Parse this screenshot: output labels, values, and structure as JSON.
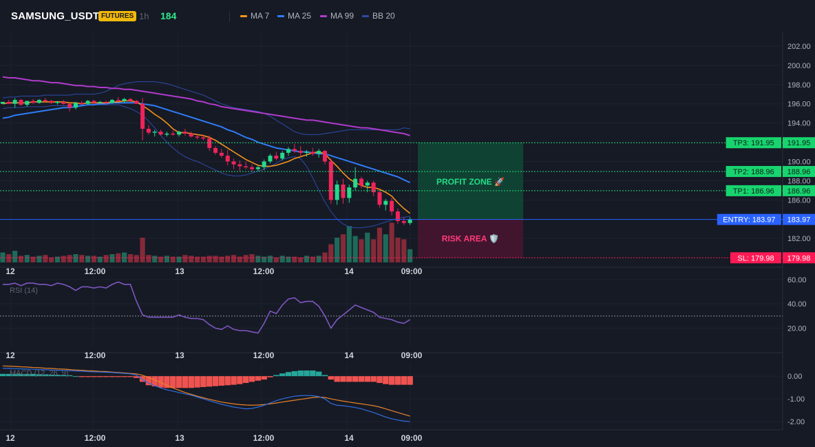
{
  "header": {
    "symbol": "SAMSUNG_USDT",
    "badge": "FUTURES",
    "timeframe": "1h",
    "last_value": "184",
    "legend": [
      {
        "label": "MA 7",
        "color": "#f7931a"
      },
      {
        "label": "MA 25",
        "color": "#2f7df6"
      },
      {
        "label": "MA 99",
        "color": "#b03bcc"
      },
      {
        "label": "BB 20",
        "color": "#2e4ba8"
      }
    ]
  },
  "colors": {
    "up": "#26d98b",
    "down": "#f0245a",
    "ma7": "#f7931a",
    "ma25": "#2f7df6",
    "ma99": "#b03bcc",
    "bb": "#2e4ba8",
    "entry": "#2962ff",
    "tp": "#22dd77",
    "sl": "#ff1f5a",
    "rsi": "#7e57c2",
    "macd": "#2f6fe0",
    "signal": "#e8832a",
    "hist_up": "#26a69a",
    "hist_down": "#ef5350"
  },
  "chart_data": [
    {
      "type": "candlestick",
      "pane": "price",
      "title": "",
      "x_labels": [
        "12",
        "12:00",
        "13",
        "12:00",
        "14",
        "09:00"
      ],
      "yticks": [
        "202.00",
        "200.00",
        "198.00",
        "196.00",
        "194.00",
        "190.00",
        "188.00",
        "186.00",
        "182.00"
      ],
      "ylim": [
        179.5,
        203.5
      ],
      "candles": [
        [
          196.0,
          196.2,
          196.0,
          196.2
        ],
        [
          196.2,
          196.4,
          196.0,
          196.0
        ],
        [
          196.0,
          196.6,
          195.6,
          196.4
        ],
        [
          196.4,
          196.5,
          195.8,
          195.9
        ],
        [
          195.9,
          196.3,
          195.7,
          196.3
        ],
        [
          196.3,
          196.5,
          196.0,
          196.1
        ],
        [
          196.1,
          196.5,
          196.0,
          196.4
        ],
        [
          196.4,
          196.6,
          196.2,
          196.3
        ],
        [
          196.3,
          196.4,
          196.0,
          196.1
        ],
        [
          196.1,
          196.3,
          195.9,
          196.2
        ],
        [
          196.2,
          196.4,
          195.9,
          196.0
        ],
        [
          196.0,
          196.1,
          195.2,
          195.6
        ],
        [
          195.6,
          196.2,
          195.4,
          196.1
        ],
        [
          196.1,
          196.3,
          195.9,
          196.0
        ],
        [
          196.0,
          196.4,
          195.9,
          196.3
        ],
        [
          196.3,
          196.4,
          196.0,
          196.1
        ],
        [
          196.1,
          196.3,
          196.0,
          196.2
        ],
        [
          196.2,
          196.3,
          196.0,
          196.1
        ],
        [
          196.1,
          196.5,
          196.0,
          196.4
        ],
        [
          196.4,
          196.7,
          196.2,
          196.3
        ],
        [
          196.3,
          196.6,
          196.1,
          196.5
        ],
        [
          196.5,
          196.6,
          196.2,
          196.3
        ],
        [
          196.3,
          196.4,
          196.0,
          196.0
        ],
        [
          196.0,
          196.6,
          192.2,
          193.4
        ],
        [
          193.4,
          193.8,
          192.8,
          193.0
        ],
        [
          193.0,
          193.3,
          192.6,
          193.1
        ],
        [
          193.1,
          193.3,
          192.7,
          192.8
        ],
        [
          192.8,
          193.1,
          192.6,
          192.9
        ],
        [
          192.9,
          193.2,
          192.7,
          192.8
        ],
        [
          192.8,
          193.2,
          192.6,
          193.1
        ],
        [
          193.1,
          193.4,
          192.7,
          192.9
        ],
        [
          192.9,
          193.1,
          192.5,
          192.6
        ],
        [
          192.6,
          192.8,
          192.3,
          192.5
        ],
        [
          192.5,
          192.8,
          192.2,
          192.4
        ],
        [
          192.4,
          192.7,
          191.1,
          191.4
        ],
        [
          191.4,
          191.6,
          190.7,
          190.9
        ],
        [
          190.9,
          191.3,
          190.4,
          190.6
        ],
        [
          190.6,
          191.2,
          189.6,
          190.0
        ],
        [
          190.0,
          190.3,
          189.2,
          189.7
        ],
        [
          189.7,
          190.1,
          189.0,
          189.5
        ],
        [
          189.5,
          190.0,
          189.2,
          189.4
        ],
        [
          189.4,
          189.7,
          188.9,
          189.2
        ],
        [
          189.2,
          189.6,
          189.0,
          189.4
        ],
        [
          189.4,
          190.2,
          189.1,
          190.0
        ],
        [
          190.0,
          190.8,
          189.8,
          190.6
        ],
        [
          190.6,
          191.0,
          190.1,
          190.3
        ],
        [
          190.3,
          191.1,
          190.1,
          190.9
        ],
        [
          190.9,
          191.5,
          190.6,
          191.3
        ],
        [
          191.3,
          191.8,
          190.9,
          191.1
        ],
        [
          191.1,
          191.6,
          190.6,
          190.9
        ],
        [
          190.9,
          191.2,
          190.5,
          191.0
        ],
        [
          191.0,
          191.4,
          190.6,
          190.8
        ],
        [
          190.8,
          191.3,
          190.4,
          191.1
        ],
        [
          191.1,
          191.2,
          189.7,
          190.0
        ],
        [
          190.0,
          190.3,
          185.6,
          186.0
        ],
        [
          186.0,
          188.0,
          185.5,
          187.6
        ],
        [
          187.6,
          188.2,
          185.6,
          186.2
        ],
        [
          186.2,
          187.6,
          185.7,
          187.3
        ],
        [
          187.3,
          189.4,
          187.0,
          188.2
        ],
        [
          188.2,
          188.4,
          187.2,
          187.5
        ],
        [
          187.5,
          188.0,
          186.8,
          187.8
        ],
        [
          187.8,
          188.0,
          186.4,
          186.8
        ],
        [
          186.8,
          187.1,
          185.2,
          185.5
        ],
        [
          185.5,
          186.1,
          184.9,
          185.9
        ],
        [
          185.9,
          186.2,
          184.4,
          184.8
        ],
        [
          184.8,
          185.1,
          183.5,
          183.8
        ],
        [
          183.8,
          184.2,
          183.4,
          183.6
        ],
        [
          183.6,
          184.2,
          183.4,
          184.0
        ]
      ],
      "ma7": [
        196.0,
        196.1,
        196.1,
        196.1,
        196.1,
        196.2,
        196.2,
        196.2,
        196.2,
        196.2,
        196.2,
        196.1,
        196.1,
        196.0,
        196.1,
        196.1,
        196.1,
        196.1,
        196.2,
        196.2,
        196.3,
        196.3,
        196.2,
        195.8,
        195.4,
        194.9,
        194.5,
        194.0,
        193.4,
        193.0,
        193.0,
        192.9,
        192.8,
        192.7,
        192.5,
        192.2,
        191.8,
        191.4,
        191.0,
        190.6,
        190.2,
        189.9,
        189.6,
        189.5,
        189.5,
        189.6,
        189.8,
        190.0,
        190.3,
        190.5,
        190.7,
        190.9,
        191.0,
        190.8,
        190.1,
        189.5,
        188.8,
        188.2,
        187.8,
        187.5,
        187.3,
        187.3,
        187.1,
        186.8,
        186.4,
        185.7,
        185.1,
        184.6
      ],
      "ma25": [
        194.5,
        194.6,
        194.8,
        194.9,
        195.0,
        195.1,
        195.2,
        195.3,
        195.4,
        195.5,
        195.6,
        195.6,
        195.7,
        195.8,
        195.9,
        195.9,
        196.0,
        196.0,
        196.1,
        196.1,
        196.1,
        196.1,
        196.1,
        196.0,
        195.9,
        195.8,
        195.6,
        195.4,
        195.2,
        195.0,
        194.8,
        194.6,
        194.4,
        194.2,
        194.0,
        193.8,
        193.6,
        193.3,
        193.1,
        192.8,
        192.5,
        192.3,
        192.0,
        191.8,
        191.6,
        191.4,
        191.3,
        191.2,
        191.1,
        191.0,
        191.0,
        190.9,
        190.8,
        190.8,
        190.6,
        190.4,
        190.2,
        190.0,
        189.8,
        189.6,
        189.4,
        189.2,
        189.0,
        188.8,
        188.6,
        188.4,
        188.1,
        187.8
      ],
      "ma99": [
        198.8,
        198.7,
        198.7,
        198.6,
        198.5,
        198.4,
        198.4,
        198.3,
        198.2,
        198.2,
        198.1,
        198.0,
        197.9,
        197.9,
        197.8,
        197.8,
        197.7,
        197.7,
        197.6,
        197.6,
        197.5,
        197.5,
        197.4,
        197.3,
        197.2,
        197.1,
        197.0,
        196.9,
        196.8,
        196.7,
        196.6,
        196.5,
        196.3,
        196.2,
        196.0,
        195.9,
        195.7,
        195.6,
        195.5,
        195.4,
        195.3,
        195.2,
        195.1,
        195.0,
        194.9,
        194.8,
        194.7,
        194.6,
        194.5,
        194.4,
        194.3,
        194.3,
        194.2,
        194.1,
        194.0,
        193.9,
        193.8,
        193.7,
        193.6,
        193.5,
        193.5,
        193.4,
        193.3,
        193.2,
        193.1,
        193.0,
        192.9,
        192.7
      ],
      "bb_upper": [
        196.6,
        196.7,
        196.7,
        196.8,
        196.8,
        196.8,
        196.8,
        196.9,
        196.9,
        196.9,
        196.9,
        196.9,
        197.0,
        197.0,
        197.0,
        197.0,
        197.1,
        197.3,
        197.6,
        197.9,
        198.1,
        198.2,
        198.3,
        198.3,
        198.3,
        198.3,
        198.2,
        198.1,
        197.9,
        197.7,
        197.5,
        197.3,
        197.1,
        196.9,
        196.6,
        196.3,
        196.0,
        195.8,
        195.6,
        195.5,
        195.4,
        195.3,
        195.2,
        195.0,
        194.7,
        194.3,
        193.9,
        193.5,
        193.1,
        192.9,
        192.8,
        192.8,
        192.8,
        192.9,
        193.0,
        193.1,
        193.2,
        193.3,
        193.3,
        193.3,
        193.3,
        193.3,
        193.3,
        193.3,
        193.3,
        193.3,
        193.5,
        193.4
      ],
      "bb_lower": [
        195.5,
        195.6,
        195.6,
        195.6,
        195.7,
        195.7,
        195.7,
        195.7,
        195.8,
        195.8,
        195.8,
        195.8,
        195.9,
        195.9,
        195.9,
        195.9,
        195.9,
        195.9,
        195.9,
        195.9,
        195.7,
        195.5,
        195.2,
        194.8,
        194.2,
        193.5,
        192.7,
        192.0,
        191.4,
        190.9,
        190.5,
        190.2,
        190.0,
        189.7,
        189.4,
        189.1,
        188.8,
        188.6,
        188.5,
        188.5,
        188.6,
        188.8,
        189.0,
        189.2,
        189.5,
        189.8,
        190.2,
        190.4,
        190.5,
        190.3,
        189.5,
        188.3,
        187.0,
        185.8,
        184.8,
        184.0,
        183.5,
        183.2,
        183.1,
        183.1,
        183.2,
        183.3,
        183.5,
        183.7,
        183.9,
        184.1,
        184.2,
        184.3
      ],
      "volume": [
        12,
        10,
        14,
        8,
        9,
        7,
        8,
        9,
        6,
        7,
        8,
        9,
        10,
        9,
        8,
        8,
        7,
        9,
        10,
        11,
        12,
        10,
        9,
        30,
        9,
        8,
        7,
        8,
        7,
        7,
        9,
        8,
        7,
        7,
        8,
        8,
        7,
        8,
        9,
        7,
        9,
        10,
        8,
        7,
        8,
        6,
        8,
        7,
        7,
        6,
        8,
        7,
        8,
        12,
        22,
        30,
        34,
        44,
        32,
        28,
        36,
        28,
        42,
        34,
        48,
        30,
        28,
        16
      ],
      "volume_ylim": [
        0,
        50
      ],
      "levels": {
        "tp3": {
          "label": "TP3: 191.95",
          "value": "191.95"
        },
        "tp2": {
          "label": "TP2: 188.96",
          "value": "188.96"
        },
        "tp1": {
          "label": "TP1: 186.96",
          "value": "186.96"
        },
        "entry": {
          "label": "ENTRY: 183.97",
          "value": "183.97"
        },
        "sl": {
          "label": "SL: 179.98",
          "value": "179.98"
        }
      },
      "zones": {
        "profit": "PROFIT ZONE 🚀",
        "risk": "RISK AREA 🛡️"
      }
    },
    {
      "type": "line",
      "pane": "rsi",
      "title": "RSI (14)",
      "x_labels": [
        "12",
        "12:00",
        "13",
        "12:00",
        "14",
        "09:00"
      ],
      "yticks": [
        "60.00",
        "40.00",
        "20.00"
      ],
      "ylim": [
        5,
        65
      ],
      "reference": 30,
      "values": [
        56,
        56,
        57,
        55,
        57,
        57,
        56,
        56,
        55,
        57,
        56,
        54,
        51,
        54,
        54,
        53,
        54,
        53,
        56,
        58,
        56,
        56,
        42,
        31,
        29,
        29,
        29,
        29,
        29,
        31,
        29,
        28,
        28,
        27,
        23,
        20,
        19,
        22,
        19,
        18,
        18,
        17,
        16,
        24,
        34,
        32,
        39,
        44,
        45,
        41,
        42,
        42,
        38,
        30,
        20,
        27,
        31,
        35,
        39,
        37,
        35,
        33,
        29,
        28,
        27,
        25,
        24,
        27
      ]
    },
    {
      "type": "bar+line",
      "pane": "macd",
      "title": "MACD (12, 26, 9)",
      "x_labels": [
        "12",
        "12:00",
        "13",
        "12:00",
        "14",
        "09:00"
      ],
      "yticks": [
        "0.00",
        "-1.00",
        "-2.00"
      ],
      "ylim": [
        -2.3,
        0.55
      ],
      "macd": [
        0.35,
        0.34,
        0.33,
        0.32,
        0.31,
        0.3,
        0.29,
        0.28,
        0.27,
        0.26,
        0.25,
        0.24,
        0.23,
        0.22,
        0.2,
        0.19,
        0.18,
        0.17,
        0.16,
        0.14,
        0.12,
        0.1,
        0.05,
        -0.15,
        -0.3,
        -0.42,
        -0.52,
        -0.6,
        -0.66,
        -0.72,
        -0.78,
        -0.84,
        -0.92,
        -1.0,
        -1.08,
        -1.16,
        -1.24,
        -1.3,
        -1.36,
        -1.4,
        -1.44,
        -1.42,
        -1.36,
        -1.28,
        -1.18,
        -1.08,
        -1.0,
        -0.94,
        -0.88,
        -0.86,
        -0.85,
        -0.86,
        -0.9,
        -1.0,
        -1.2,
        -1.28,
        -1.3,
        -1.34,
        -1.38,
        -1.44,
        -1.52,
        -1.6,
        -1.7,
        -1.8,
        -1.88,
        -1.93,
        -1.98,
        -2.0
      ],
      "signal": [
        0.45,
        0.44,
        0.43,
        0.41,
        0.4,
        0.38,
        0.37,
        0.35,
        0.34,
        0.32,
        0.31,
        0.29,
        0.27,
        0.26,
        0.24,
        0.23,
        0.21,
        0.2,
        0.18,
        0.16,
        0.14,
        0.12,
        0.1,
        0.04,
        -0.06,
        -0.17,
        -0.28,
        -0.4,
        -0.52,
        -0.62,
        -0.72,
        -0.8,
        -0.88,
        -0.95,
        -1.02,
        -1.08,
        -1.14,
        -1.18,
        -1.22,
        -1.25,
        -1.27,
        -1.28,
        -1.27,
        -1.25,
        -1.22,
        -1.18,
        -1.14,
        -1.1,
        -1.06,
        -1.02,
        -0.98,
        -0.94,
        -0.92,
        -0.94,
        -1.0,
        -1.05,
        -1.1,
        -1.14,
        -1.18,
        -1.22,
        -1.26,
        -1.3,
        -1.36,
        -1.44,
        -1.52,
        -1.6,
        -1.68,
        -1.76
      ],
      "histogram": [
        0.1,
        0.1,
        0.1,
        0.1,
        0.1,
        0.1,
        0.09,
        0.08,
        0.07,
        0.06,
        0.05,
        0.04,
        0.0,
        -0.04,
        -0.04,
        -0.04,
        -0.04,
        -0.04,
        -0.04,
        -0.04,
        -0.04,
        -0.04,
        -0.08,
        -0.25,
        -0.4,
        -0.45,
        -0.5,
        -0.52,
        -0.52,
        -0.52,
        -0.52,
        -0.52,
        -0.5,
        -0.48,
        -0.46,
        -0.44,
        -0.42,
        -0.4,
        -0.38,
        -0.35,
        -0.3,
        -0.25,
        -0.2,
        -0.15,
        -0.05,
        0.05,
        0.12,
        0.18,
        0.22,
        0.25,
        0.25,
        0.25,
        0.2,
        0.05,
        -0.15,
        -0.25,
        -0.25,
        -0.25,
        -0.25,
        -0.25,
        -0.25,
        -0.25,
        -0.3,
        -0.35,
        -0.38,
        -0.38,
        -0.38,
        -0.38
      ]
    }
  ]
}
